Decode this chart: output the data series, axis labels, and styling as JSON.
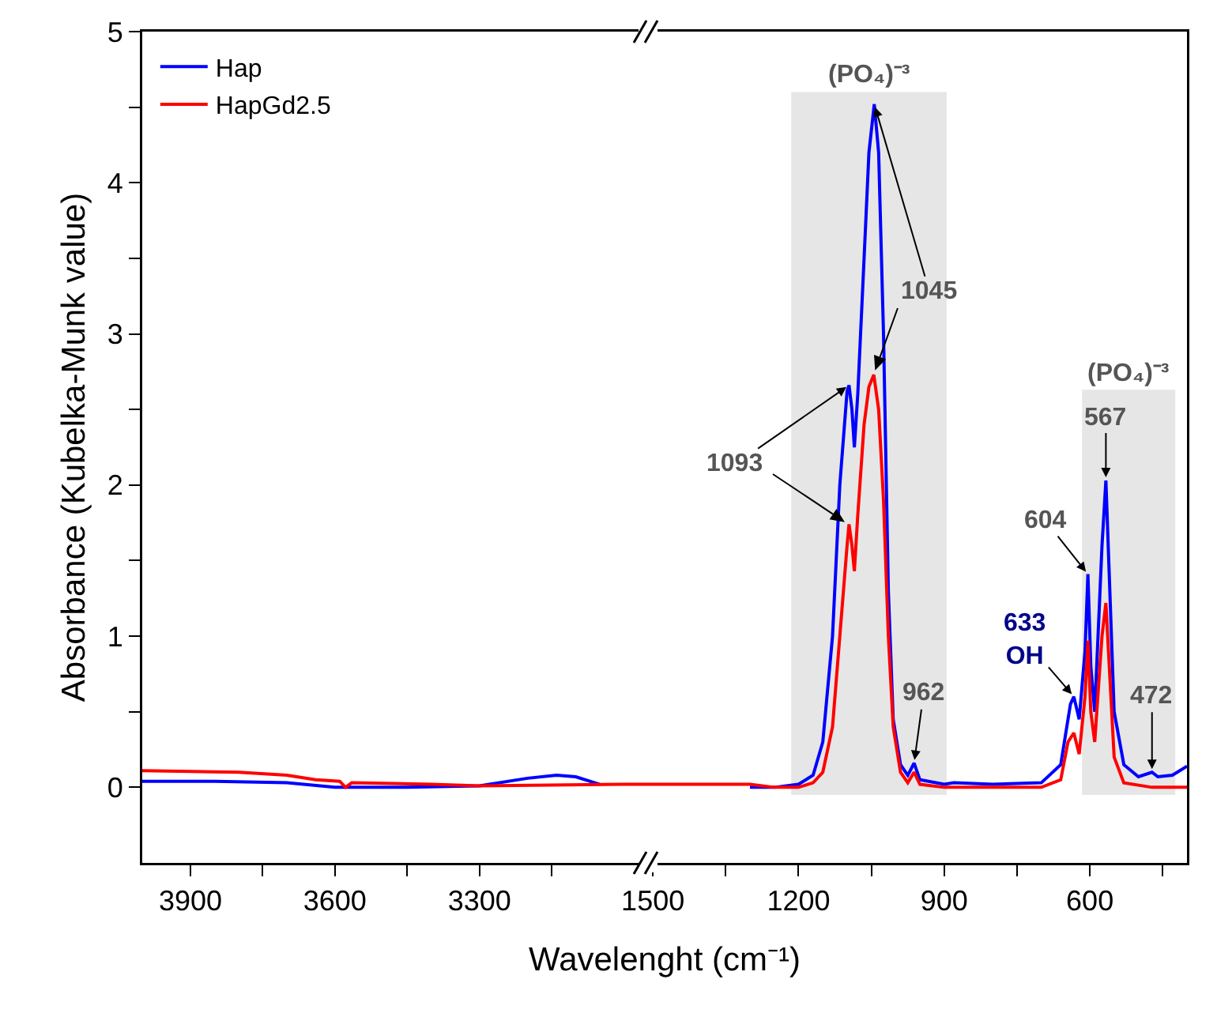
{
  "chart_data": [
    {
      "type": "line",
      "xlabel": "Wavelenght (cm⁻¹)",
      "ylabel": "Absorbance (Kubelka-Munk value)",
      "xlim": [
        4000,
        2950
      ],
      "ylim": [
        -0.5,
        5
      ],
      "xticks": [
        3900,
        {
          "value": 3750,
          "label": null
        },
        3600,
        {
          "value": 3450,
          "label": null
        },
        3300,
        {
          "value": 3150,
          "label": null
        }
      ],
      "yticks": [
        0,
        {
          "value": 0.5,
          "label": null
        },
        1,
        {
          "value": 1.5,
          "label": null
        },
        2,
        {
          "value": 2.5,
          "label": null
        },
        3,
        {
          "value": 3.5,
          "label": null
        },
        4,
        {
          "value": 4.5,
          "label": null
        },
        5
      ],
      "legend": "top left",
      "grid": false,
      "series": [
        {
          "name": "Hap",
          "color": "#0000ff",
          "x": [
            4000,
            3850,
            3700,
            3600,
            3450,
            3300,
            3200,
            3140,
            3100,
            3050
          ],
          "values": [
            0.04,
            0.04,
            0.03,
            0.0,
            0.0,
            0.01,
            0.06,
            0.08,
            0.07,
            0.02
          ]
        },
        {
          "name": "HapGd2.5",
          "color": "#ff0000",
          "x": [
            4000,
            3800,
            3700,
            3640,
            3590,
            3578,
            3565,
            3400,
            3300,
            3000,
            2950
          ],
          "values": [
            0.11,
            0.1,
            0.08,
            0.05,
            0.04,
            0.0,
            0.03,
            0.02,
            0.01,
            0.02,
            0.02
          ]
        }
      ]
    },
    {
      "type": "line",
      "xlim": [
        1510,
        400
      ],
      "ylim": [
        -0.5,
        5
      ],
      "tick_labels": "x",
      "legend": false,
      "grid": false,
      "xticks": [
        1500,
        {
          "value": 1350,
          "label": null
        },
        1200,
        {
          "value": 1050,
          "label": null
        },
        900,
        {
          "value": 750,
          "label": null
        },
        600,
        {
          "value": 450,
          "label": null
        }
      ],
      "bands": [
        {
          "axis": "x",
          "from": 1215,
          "to": 895,
          "label": "(PO₄)⁻³",
          "color": "#e6e6e6"
        },
        {
          "axis": "x",
          "from": 616,
          "to": 424,
          "label": "(PO₄)⁻³",
          "color": "#e6e6e6"
        }
      ],
      "annotations": [
        {
          "text": "1093",
          "x": 1096,
          "y": 2.66
        },
        {
          "text": "1045",
          "x": 1044,
          "y": 4.52
        },
        {
          "text": "962",
          "x": 962,
          "y": 0.16
        },
        {
          "text": "633\nOH",
          "x": 633,
          "y": 0.6
        },
        {
          "text": "604",
          "x": 604,
          "y": 1.41
        },
        {
          "text": "567",
          "x": 567,
          "y": 2.03
        },
        {
          "text": "472",
          "x": 472,
          "y": 0.1
        }
      ],
      "series": [
        {
          "color": "#0000ff",
          "x": [
            1300,
            1250,
            1200,
            1170,
            1150,
            1130,
            1115,
            1100,
            1096,
            1090,
            1085,
            1078,
            1065,
            1055,
            1044,
            1035,
            1025,
            1015,
            1005,
            990,
            975,
            962,
            950,
            900,
            880,
            800,
            700,
            660,
            640,
            633,
            622,
            610,
            604,
            598,
            590,
            575,
            567,
            560,
            550,
            530,
            500,
            472,
            460,
            430,
            400
          ],
          "values": [
            0.0,
            0.0,
            0.02,
            0.08,
            0.3,
            1.0,
            2.0,
            2.62,
            2.66,
            2.5,
            2.25,
            2.6,
            3.5,
            4.2,
            4.52,
            4.2,
            3.0,
            1.3,
            0.45,
            0.15,
            0.08,
            0.16,
            0.05,
            0.02,
            0.03,
            0.02,
            0.03,
            0.15,
            0.55,
            0.6,
            0.45,
            0.9,
            1.41,
            0.8,
            0.5,
            1.6,
            2.03,
            1.4,
            0.5,
            0.15,
            0.07,
            0.1,
            0.07,
            0.08,
            0.14
          ]
        },
        {
          "color": "#ff0000",
          "x": [
            1510,
            1400,
            1300,
            1250,
            1200,
            1170,
            1150,
            1130,
            1115,
            1100,
            1096,
            1090,
            1085,
            1078,
            1065,
            1055,
            1045,
            1035,
            1025,
            1015,
            1005,
            990,
            975,
            962,
            950,
            900,
            700,
            660,
            645,
            633,
            622,
            610,
            604,
            598,
            590,
            575,
            567,
            560,
            550,
            530,
            472,
            400
          ],
          "values": [
            0.02,
            0.02,
            0.02,
            0.0,
            0.0,
            0.03,
            0.1,
            0.4,
            1.0,
            1.6,
            1.74,
            1.6,
            1.43,
            1.8,
            2.4,
            2.65,
            2.73,
            2.5,
            1.9,
            1.0,
            0.4,
            0.1,
            0.03,
            0.1,
            0.02,
            0.0,
            0.0,
            0.05,
            0.3,
            0.36,
            0.22,
            0.6,
            0.97,
            0.5,
            0.3,
            1.0,
            1.22,
            0.8,
            0.2,
            0.03,
            0.0,
            0.0
          ]
        }
      ]
    }
  ]
}
